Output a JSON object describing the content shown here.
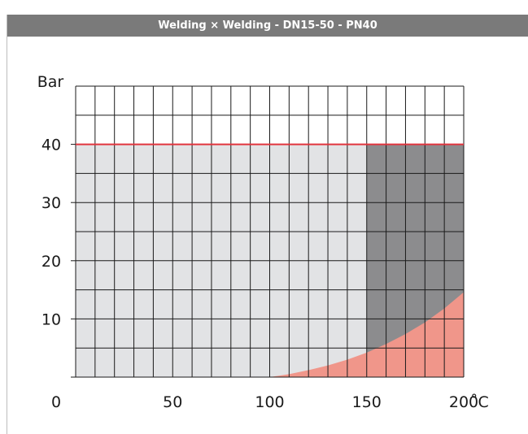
{
  "header": {
    "title": "Welding × Welding - DN15-50 - PN40"
  },
  "chart_data": {
    "type": "area",
    "title": "Welding × Welding - DN15-50 - PN40",
    "xlabel": "",
    "ylabel": "Bar",
    "x_unit": "˚C",
    "xlim": [
      0,
      200
    ],
    "ylim": [
      0,
      50
    ],
    "x_ticks": [
      {
        "value": 0,
        "label": "0"
      },
      {
        "value": 50,
        "label": "50"
      },
      {
        "value": 100,
        "label": "100"
      },
      {
        "value": 150,
        "label": "150"
      },
      {
        "value": 200,
        "label": "200"
      }
    ],
    "y_ticks": [
      {
        "value": 10,
        "label": "10"
      },
      {
        "value": 20,
        "label": "20"
      },
      {
        "value": 30,
        "label": "30"
      },
      {
        "value": 40,
        "label": "40"
      }
    ],
    "grid": true,
    "grid_x_step": 10,
    "grid_y_step": 5,
    "regions": [
      {
        "fill": "#e2e3e5",
        "x_range": [
          0,
          150
        ],
        "y_max": 40
      },
      {
        "fill": "#8c8c8e",
        "x_range": [
          150,
          200
        ],
        "y_max": 40
      }
    ],
    "limit_line": {
      "y": 40,
      "x_range": [
        0,
        200
      ],
      "color": "#e2343e"
    },
    "curve": {
      "fill": "#f0968a",
      "points": [
        [
          100,
          0
        ],
        [
          110,
          0.5
        ],
        [
          120,
          1.2
        ],
        [
          130,
          2.0
        ],
        [
          140,
          3.0
        ],
        [
          150,
          4.2
        ],
        [
          160,
          5.7
        ],
        [
          170,
          7.4
        ],
        [
          180,
          9.4
        ],
        [
          190,
          11.8
        ],
        [
          200,
          14.6
        ]
      ]
    }
  }
}
